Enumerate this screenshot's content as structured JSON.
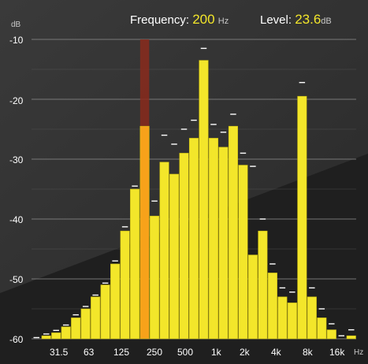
{
  "readout": {
    "frequency_label": "Frequency:",
    "frequency_value": "200",
    "frequency_unit": "Hz",
    "level_label": "Level:",
    "level_value": "23.6",
    "level_unit": "dB"
  },
  "y_unit": "dB",
  "x_unit": "Hz",
  "y_ticks": [
    "-10",
    "-20",
    "-30",
    "-40",
    "-50",
    "-60"
  ],
  "x_ticks": [
    "31.5",
    "63",
    "125",
    "250",
    "500",
    "1k",
    "2k",
    "4k",
    "8k",
    "16k"
  ],
  "colors": {
    "bar": "#f3e62a",
    "bar_edge": "#c9bb10",
    "selected_bar": "#f7a21a",
    "selected_range": "#8a2a1c",
    "peak_marker": "#ffffff",
    "background": "#1f1f1f"
  },
  "chart_data": {
    "type": "bar",
    "ylim": [
      -60,
      -10
    ],
    "selected_band": "200 Hz",
    "bands": [
      {
        "level": -60,
        "peak": -59.8
      },
      {
        "level": -59.5,
        "peak": -59.2
      },
      {
        "level": -59,
        "peak": -58.6
      },
      {
        "level": -58,
        "peak": -57.7
      },
      {
        "level": -56.5,
        "peak": -56
      },
      {
        "level": -55,
        "peak": -54.6
      },
      {
        "level": -53,
        "peak": -52.7
      },
      {
        "level": -51,
        "peak": -50.7
      },
      {
        "level": -47.5,
        "peak": -47
      },
      {
        "level": -42,
        "peak": -41.3
      },
      {
        "level": -35,
        "peak": -34.5
      },
      {
        "level": -24.5,
        "peak": -10
      },
      {
        "level": -39.5,
        "peak": -37
      },
      {
        "level": -30.5,
        "peak": -26
      },
      {
        "level": -32.5,
        "peak": -27.5
      },
      {
        "level": -29,
        "peak": -25
      },
      {
        "level": -26.5,
        "peak": -23.5
      },
      {
        "level": -13.5,
        "peak": -11.5
      },
      {
        "level": -26.5,
        "peak": -24.2
      },
      {
        "level": -28,
        "peak": -25.5
      },
      {
        "level": -24.5,
        "peak": -22.5
      },
      {
        "level": -31,
        "peak": -29
      },
      {
        "level": -46,
        "peak": -31.2
      },
      {
        "level": -42,
        "peak": -40
      },
      {
        "level": -49,
        "peak": -47.5
      },
      {
        "level": -53,
        "peak": -51.5
      },
      {
        "level": -54,
        "peak": -52.2
      },
      {
        "level": -19.5,
        "peak": -17.2
      },
      {
        "level": -53,
        "peak": -51.5
      },
      {
        "level": -56.5,
        "peak": -55
      },
      {
        "level": -58.5,
        "peak": -57.5
      },
      {
        "level": -60,
        "peak": -59.5
      },
      {
        "level": -59.5,
        "peak": -58.5
      }
    ],
    "selected_index": 11
  }
}
